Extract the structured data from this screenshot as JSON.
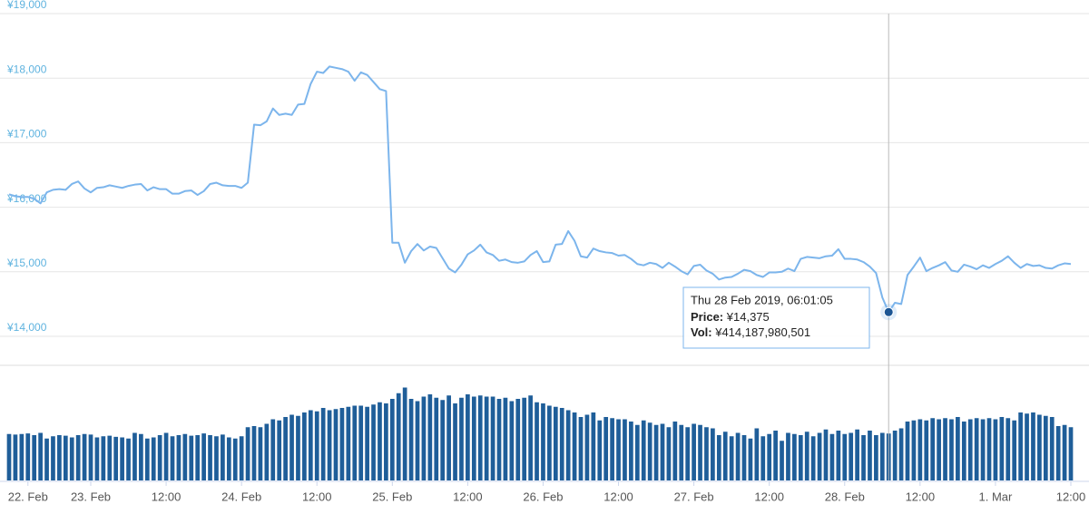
{
  "chart_data": {
    "type": "line",
    "categories": [
      null,
      null,
      null,
      "22. Feb",
      null,
      null,
      null,
      null,
      null,
      null,
      null,
      null,
      null,
      "23. Feb",
      null,
      null,
      null,
      null,
      null,
      null,
      null,
      null,
      null,
      null,
      null,
      "12:00",
      null,
      null,
      null,
      null,
      null,
      null,
      null,
      null,
      null,
      null,
      null,
      "24. Feb",
      null,
      null,
      null,
      null,
      null,
      null,
      null,
      null,
      null,
      null,
      null,
      "12:00",
      null,
      null,
      null,
      null,
      null,
      null,
      null,
      null,
      null,
      null,
      null,
      "25. Feb",
      null,
      null,
      null,
      null,
      null,
      null,
      null,
      null,
      null,
      null,
      null,
      "12:00",
      null,
      null,
      null,
      null,
      null,
      null,
      null,
      null,
      null,
      null,
      null,
      "26. Feb",
      null,
      null,
      null,
      null,
      null,
      null,
      null,
      null,
      null,
      null,
      null,
      "12:00",
      null,
      null,
      null,
      null,
      null,
      null,
      null,
      null,
      null,
      null,
      null,
      "27. Feb",
      null,
      null,
      null,
      null,
      null,
      null,
      null,
      null,
      null,
      null,
      null,
      "12:00",
      null,
      null,
      null,
      null,
      null,
      null,
      null,
      null,
      null,
      null,
      null,
      "28. Feb",
      null,
      null,
      null,
      null,
      null,
      null,
      null,
      null,
      null,
      null,
      null,
      "12:00",
      null,
      null,
      null,
      null,
      null,
      null,
      null,
      null,
      null,
      null,
      null,
      "1. Mar",
      null,
      null,
      null,
      null,
      null,
      null,
      null,
      null,
      null,
      null,
      null,
      "12:00"
    ],
    "series": [
      {
        "type": "line",
        "color": "#7cb5ec",
        "values": [
          16200,
          16170,
          16160,
          16160,
          16130,
          16060,
          16230,
          16270,
          16280,
          16270,
          16360,
          16400,
          16290,
          16230,
          16300,
          16310,
          16340,
          16320,
          16300,
          16330,
          16350,
          16360,
          16260,
          16310,
          16280,
          16280,
          16210,
          16210,
          16250,
          16260,
          16190,
          16250,
          16360,
          16380,
          16340,
          16330,
          16330,
          16300,
          16380,
          17280,
          17270,
          17330,
          17530,
          17430,
          17450,
          17430,
          17590,
          17600,
          17910,
          18100,
          18080,
          18180,
          18160,
          18140,
          18100,
          17960,
          18090,
          18050,
          17940,
          17830,
          17800,
          15450,
          15450,
          15140,
          15320,
          15430,
          15330,
          15390,
          15370,
          15210,
          15050,
          14990,
          15110,
          15270,
          15330,
          15420,
          15300,
          15260,
          15170,
          15190,
          15150,
          15140,
          15160,
          15260,
          15320,
          15150,
          15160,
          15420,
          15430,
          15630,
          15480,
          15240,
          15220,
          15360,
          15320,
          15300,
          15290,
          15250,
          15260,
          15200,
          15120,
          15100,
          15140,
          15120,
          15060,
          15140,
          15080,
          15010,
          14960,
          15090,
          15110,
          15020,
          14970,
          14880,
          14910,
          14920,
          14970,
          15030,
          15010,
          14950,
          14920,
          14990,
          14990,
          15000,
          15050,
          15010,
          15200,
          15230,
          15220,
          15210,
          15240,
          15250,
          15350,
          15200,
          15200,
          15190,
          15150,
          15080,
          14980,
          14600,
          14375,
          14520,
          14500,
          14950,
          15080,
          15220,
          15010,
          15060,
          15100,
          15150,
          15020,
          15000,
          15110,
          15080,
          15040,
          15100,
          15060,
          15120,
          15170,
          15240,
          15140,
          15060,
          15120,
          15090,
          15100,
          15060,
          15050,
          15100,
          15130,
          15120
        ]
      },
      {
        "type": "bar",
        "axis": "y2",
        "color": "#1f5e99",
        "values": [
          410000000000.0,
          405000000000.0,
          410000000000.0,
          415000000000.0,
          400000000000.0,
          420000000000.0,
          370000000000.0,
          390000000000.0,
          400000000000.0,
          395000000000.0,
          380000000000.0,
          400000000000.0,
          410000000000.0,
          405000000000.0,
          380000000000.0,
          390000000000.0,
          395000000000.0,
          385000000000.0,
          380000000000.0,
          370000000000.0,
          420000000000.0,
          410000000000.0,
          370000000000.0,
          380000000000.0,
          400000000000.0,
          420000000000.0,
          390000000000.0,
          400000000000.0,
          410000000000.0,
          395000000000.0,
          400000000000.0,
          415000000000.0,
          400000000000.0,
          390000000000.0,
          405000000000.0,
          380000000000.0,
          370000000000.0,
          390000000000.0,
          470000000000.0,
          480000000000.0,
          470000000000.0,
          500000000000.0,
          540000000000.0,
          530000000000.0,
          560000000000.0,
          580000000000.0,
          570000000000.0,
          600000000000.0,
          620000000000.0,
          610000000000.0,
          640000000000.0,
          620000000000.0,
          630000000000.0,
          640000000000.0,
          650000000000.0,
          660000000000.0,
          660000000000.0,
          650000000000.0,
          670000000000.0,
          690000000000.0,
          680000000000.0,
          720000000000.0,
          770000000000.0,
          820000000000.0,
          720000000000.0,
          700000000000.0,
          740000000000.0,
          760000000000.0,
          730000000000.0,
          710000000000.0,
          750000000000.0,
          680000000000.0,
          730000000000.0,
          760000000000.0,
          740000000000.0,
          750000000000.0,
          740000000000.0,
          740000000000.0,
          720000000000.0,
          730000000000.0,
          700000000000.0,
          720000000000.0,
          730000000000.0,
          750000000000.0,
          690000000000.0,
          680000000000.0,
          660000000000.0,
          650000000000.0,
          640000000000.0,
          620000000000.0,
          600000000000.0,
          560000000000.0,
          580000000000.0,
          600000000000.0,
          530000000000.0,
          560000000000.0,
          550000000000.0,
          540000000000.0,
          540000000000.0,
          520000000000.0,
          490000000000.0,
          530000000000.0,
          510000000000.0,
          490000000000.0,
          500000000000.0,
          470000000000.0,
          520000000000.0,
          490000000000.0,
          470000000000.0,
          500000000000.0,
          490000000000.0,
          470000000000.0,
          460000000000.0,
          400000000000.0,
          430000000000.0,
          390000000000.0,
          420000000000.0,
          400000000000.0,
          370000000000.0,
          460000000000.0,
          390000000000.0,
          410000000000.0,
          440000000000.0,
          350000000000.0,
          420000000000.0,
          410000000000.0,
          400000000000.0,
          430000000000.0,
          390000000000.0,
          420000000000.0,
          450000000000.0,
          410000000000.0,
          440000000000.0,
          410000000000.0,
          420000000000.0,
          450000000000.0,
          400000000000.0,
          440000000000.0,
          400000000000.0,
          420000000000.0,
          414187980501,
          440000000000.0,
          460000000000.0,
          520000000000.0,
          530000000000.0,
          540000000000.0,
          530000000000.0,
          550000000000.0,
          540000000000.0,
          550000000000.0,
          540000000000.0,
          560000000000.0,
          520000000000.0,
          540000000000.0,
          550000000000.0,
          540000000000.0,
          550000000000.0,
          540000000000.0,
          560000000000.0,
          550000000000.0,
          530000000000.0,
          600000000000.0,
          590000000000.0,
          600000000000.0,
          580000000000.0,
          570000000000.0,
          560000000000.0,
          480000000000.0,
          490000000000.0,
          470000000000.0
        ]
      }
    ],
    "ylim": [
      14000,
      19000
    ],
    "yticks": [
      {
        "value": 14000,
        "label": "¥14,000"
      },
      {
        "value": 15000,
        "label": "¥15,000"
      },
      {
        "value": 16000,
        "label": "¥16,000"
      },
      {
        "value": 17000,
        "label": "¥17,000"
      },
      {
        "value": 18000,
        "label": "¥18,000"
      },
      {
        "value": 19000,
        "label": "¥19,000"
      }
    ],
    "y2lim": [
      0,
      1000000000000.0
    ],
    "grid": true,
    "tooltip": {
      "date": "Thu 28 Feb 2019, 06:01:05",
      "rows": [
        {
          "label": "Price:",
          "value": "¥14,375"
        },
        {
          "label": "Vol:",
          "value": "¥414,187,980,501"
        }
      ]
    }
  }
}
